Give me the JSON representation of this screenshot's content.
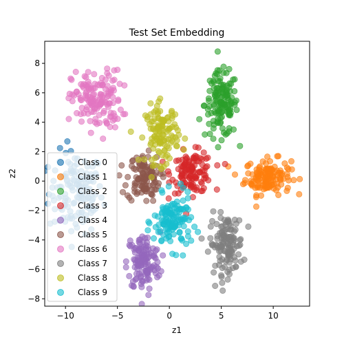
{
  "chart_data": {
    "type": "scatter",
    "title": "Test Set Embedding",
    "xlabel": "z1",
    "ylabel": "z2",
    "xlim": [
      -12,
      13.5
    ],
    "ylim": [
      -8.5,
      9.5
    ],
    "xticks": [
      -10,
      -5,
      0,
      5,
      10
    ],
    "yticks": [
      -8,
      -6,
      -4,
      -2,
      0,
      2,
      4,
      6,
      8
    ],
    "grid": false,
    "legend_position": "bottom-left",
    "alpha": 0.6,
    "series": [
      {
        "name": "Class 0",
        "color": "#1f77b4",
        "center": [
          -9.0,
          -0.8
        ],
        "spread": [
          1.3,
          1.4
        ],
        "n": 140
      },
      {
        "name": "Class 1",
        "color": "#ff7f0e",
        "center": [
          9.5,
          0.3
        ],
        "spread": [
          1.1,
          0.6
        ],
        "n": 140
      },
      {
        "name": "Class 2",
        "color": "#2ca02c",
        "center": [
          5.0,
          5.2
        ],
        "spread": [
          0.8,
          1.1
        ],
        "n": 140
      },
      {
        "name": "Class 3",
        "color": "#d62728",
        "center": [
          2.2,
          0.6
        ],
        "spread": [
          1.0,
          0.7
        ],
        "n": 120
      },
      {
        "name": "Class 4",
        "color": "#9467bd",
        "center": [
          -2.5,
          -5.5
        ],
        "spread": [
          0.8,
          1.0
        ],
        "n": 130
      },
      {
        "name": "Class 5",
        "color": "#8c564b",
        "center": [
          -2.5,
          0.2
        ],
        "spread": [
          0.8,
          0.8
        ],
        "n": 110
      },
      {
        "name": "Class 6",
        "color": "#e377c2",
        "center": [
          -7.0,
          5.5
        ],
        "spread": [
          1.2,
          1.0
        ],
        "n": 150
      },
      {
        "name": "Class 7",
        "color": "#7f7f7f",
        "center": [
          5.5,
          -4.3
        ],
        "spread": [
          0.8,
          1.0
        ],
        "n": 130
      },
      {
        "name": "Class 8",
        "color": "#bcbd22",
        "center": [
          -0.7,
          3.2
        ],
        "spread": [
          0.8,
          1.0
        ],
        "n": 120
      },
      {
        "name": "Class 9",
        "color": "#17becf",
        "center": [
          0.3,
          -2.8
        ],
        "spread": [
          0.9,
          0.9
        ],
        "n": 130
      }
    ]
  }
}
